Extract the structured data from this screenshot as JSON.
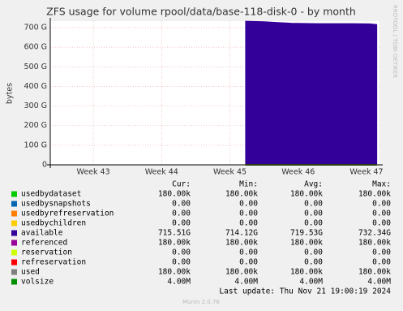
{
  "chart_data": {
    "type": "area",
    "title": "ZFS usage for volume rpool/data/base-118-disk-0 - by month",
    "y_label": "bytes",
    "side_label": "RRDTOOL / TOBI OETIKER",
    "xlim": [
      42.37,
      47.19
    ],
    "xticks": [
      {
        "value": 43,
        "label": "Week 43"
      },
      {
        "value": 44,
        "label": "Week 44"
      },
      {
        "value": 45,
        "label": "Week 45"
      },
      {
        "value": 46,
        "label": "Week 46"
      },
      {
        "value": 47,
        "label": "Week 47"
      }
    ],
    "ylim": [
      0,
      733000000000
    ],
    "yticks": [
      {
        "value": 0,
        "label": "0"
      },
      {
        "value": 100000000000,
        "label": "100 G"
      },
      {
        "value": 200000000000,
        "label": "200 G"
      },
      {
        "value": 300000000000,
        "label": "300 G"
      },
      {
        "value": 400000000000,
        "label": "400 G"
      },
      {
        "value": 500000000000,
        "label": "500 G"
      },
      {
        "value": 600000000000,
        "label": "600 G"
      },
      {
        "value": 700000000000,
        "label": "700 G"
      }
    ],
    "grid": true,
    "x": [
      45.23,
      45.5,
      45.65,
      45.9,
      46.3,
      46.8,
      47.05,
      47.15
    ],
    "stats_headers": [
      "Cur:",
      "Min:",
      "Avg:",
      "Max:"
    ],
    "series": [
      {
        "name": "usedbydataset",
        "color": "#00cc00",
        "style": "line",
        "values": [
          180000,
          180000,
          180000,
          180000,
          180000,
          180000,
          180000,
          180000
        ],
        "stats": [
          "180.00k",
          "180.00k",
          "180.00k",
          "180.00k"
        ]
      },
      {
        "name": "usedbysnapshots",
        "color": "#0066b3",
        "style": "line",
        "values": [
          0,
          0,
          0,
          0,
          0,
          0,
          0,
          0
        ],
        "stats": [
          "0.00",
          "0.00",
          "0.00",
          "0.00"
        ]
      },
      {
        "name": "usedbyrefreservation",
        "color": "#ff8000",
        "style": "line",
        "values": [
          0,
          0,
          0,
          0,
          0,
          0,
          0,
          0
        ],
        "stats": [
          "0.00",
          "0.00",
          "0.00",
          "0.00"
        ]
      },
      {
        "name": "usedbychildren",
        "color": "#ffcc00",
        "style": "line",
        "values": [
          0,
          0,
          0,
          0,
          0,
          0,
          0,
          0
        ],
        "stats": [
          "0.00",
          "0.00",
          "0.00",
          "0.00"
        ]
      },
      {
        "name": "available",
        "color": "#330099",
        "style": "area",
        "values": [
          732340000000,
          730000000000,
          727000000000,
          722000000000,
          720000000000,
          720000000000,
          719000000000,
          715510000000
        ],
        "stats": [
          "715.51G",
          "714.12G",
          "719.53G",
          "732.34G"
        ]
      },
      {
        "name": "referenced",
        "color": "#990099",
        "style": "line",
        "values": [
          180000,
          180000,
          180000,
          180000,
          180000,
          180000,
          180000,
          180000
        ],
        "stats": [
          "180.00k",
          "180.00k",
          "180.00k",
          "180.00k"
        ]
      },
      {
        "name": "reservation",
        "color": "#ccff00",
        "style": "line",
        "values": [
          0,
          0,
          0,
          0,
          0,
          0,
          0,
          0
        ],
        "stats": [
          "0.00",
          "0.00",
          "0.00",
          "0.00"
        ]
      },
      {
        "name": "refreservation",
        "color": "#ff0000",
        "style": "line",
        "values": [
          0,
          0,
          0,
          0,
          0,
          0,
          0,
          0
        ],
        "stats": [
          "0.00",
          "0.00",
          "0.00",
          "0.00"
        ]
      },
      {
        "name": "used",
        "color": "#808080",
        "style": "line",
        "values": [
          180000,
          180000,
          180000,
          180000,
          180000,
          180000,
          180000,
          180000
        ],
        "stats": [
          "180.00k",
          "180.00k",
          "180.00k",
          "180.00k"
        ]
      },
      {
        "name": "volsize",
        "color": "#008f00",
        "style": "line",
        "values": [
          4000000,
          4000000,
          4000000,
          4000000,
          4000000,
          4000000,
          4000000,
          4000000
        ],
        "stats": [
          "4.00M",
          "4.00M",
          "4.00M",
          "4.00M"
        ]
      }
    ],
    "last_update": "Last update: Thu Nov 21 19:00:19 2024",
    "footer": "Munin 2.0.76"
  }
}
